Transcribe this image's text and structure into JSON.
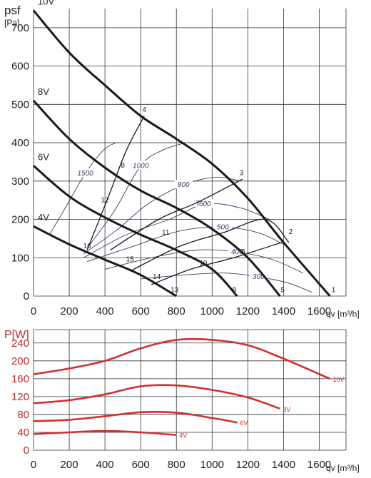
{
  "chart_data": [
    {
      "type": "line",
      "ylabel_top": "psf",
      "ylabel_unit": "[Pa]",
      "xlabel": "qv [m³/h]",
      "xlim": [
        0,
        1750
      ],
      "ylim": [
        0,
        750
      ],
      "x_ticks": [
        0,
        200,
        400,
        600,
        800,
        1000,
        1200,
        1400,
        1600
      ],
      "y_ticks": [
        0,
        100,
        200,
        300,
        400,
        500,
        600,
        700
      ],
      "grid": true,
      "series": [
        {
          "name": "10V",
          "points": [
            [
              0,
              745
            ],
            [
              200,
              635
            ],
            [
              400,
              550
            ],
            [
              600,
              470
            ],
            [
              800,
              410
            ],
            [
              1000,
              345
            ],
            [
              1200,
              255
            ],
            [
              1400,
              140
            ],
            [
              1660,
              0
            ]
          ]
        },
        {
          "name": "8V",
          "points": [
            [
              0,
              510
            ],
            [
              200,
              410
            ],
            [
              400,
              335
            ],
            [
              600,
              275
            ],
            [
              800,
              230
            ],
            [
              1000,
              175
            ],
            [
              1200,
              100
            ],
            [
              1380,
              0
            ]
          ]
        },
        {
          "name": "6V",
          "points": [
            [
              0,
              340
            ],
            [
              200,
              260
            ],
            [
              400,
              205
            ],
            [
              600,
              160
            ],
            [
              800,
              120
            ],
            [
              1000,
              70
            ],
            [
              1140,
              0
            ]
          ]
        },
        {
          "name": "4V",
          "points": [
            [
              0,
              182
            ],
            [
              200,
              135
            ],
            [
              400,
              95
            ],
            [
              600,
              55
            ],
            [
              800,
              0
            ]
          ]
        }
      ],
      "isolines": [
        {
          "label": "1500",
          "points": [
            [
              90,
              160
            ],
            [
              190,
              240
            ],
            [
              290,
              320
            ],
            [
              390,
              380
            ],
            [
              460,
              400
            ]
          ]
        },
        {
          "label": "1000",
          "points": [
            [
              300,
              125
            ],
            [
              450,
              220
            ],
            [
              600,
              340
            ],
            [
              720,
              380
            ],
            [
              850,
              400
            ]
          ]
        },
        {
          "label": "800",
          "points": [
            [
              280,
              110
            ],
            [
              460,
              170
            ],
            [
              640,
              240
            ],
            [
              840,
              290
            ],
            [
              1020,
              310
            ],
            [
              1160,
              300
            ]
          ]
        },
        {
          "label": "600",
          "points": [
            [
              280,
              100
            ],
            [
              520,
              160
            ],
            [
              760,
              200
            ],
            [
              960,
              240
            ],
            [
              1160,
              230
            ],
            [
              1320,
              200
            ]
          ]
        },
        {
          "label": "500",
          "points": [
            [
              300,
              90
            ],
            [
              560,
              130
            ],
            [
              820,
              170
            ],
            [
              1060,
              180
            ],
            [
              1260,
              165
            ],
            [
              1420,
              130
            ]
          ]
        },
        {
          "label": "400",
          "points": [
            [
              400,
              70
            ],
            [
              660,
              100
            ],
            [
              920,
              120
            ],
            [
              1140,
              115
            ],
            [
              1340,
              95
            ],
            [
              1510,
              60
            ]
          ]
        },
        {
          "label": "300",
          "points": [
            [
              600,
              45
            ],
            [
              840,
              55
            ],
            [
              1080,
              60
            ],
            [
              1260,
              50
            ],
            [
              1420,
              35
            ],
            [
              1560,
              10
            ]
          ]
        }
      ],
      "resistance_lines": [
        {
          "points": [
            [
              300,
              120
            ],
            [
              420,
              260
            ],
            [
              520,
              380
            ],
            [
              620,
              470
            ]
          ]
        },
        {
          "points": [
            [
              430,
              120
            ],
            [
              700,
              200
            ],
            [
              920,
              245
            ],
            [
              1170,
              305
            ]
          ]
        },
        {
          "points": [
            [
              540,
              65
            ],
            [
              820,
              130
            ],
            [
              1060,
              165
            ],
            [
              1300,
              200
            ],
            [
              1430,
              140
            ]
          ]
        },
        {
          "points": [
            [
              660,
              30
            ],
            [
              880,
              70
            ],
            [
              1120,
              100
            ],
            [
              1390,
              140
            ]
          ]
        }
      ],
      "point_labels": [
        {
          "label": "1",
          "x": 1680,
          "y": 10
        },
        {
          "label": "2",
          "x": 1440,
          "y": 162
        },
        {
          "label": "3",
          "x": 1165,
          "y": 315
        },
        {
          "label": "4",
          "x": 620,
          "y": 480
        },
        {
          "label": "5",
          "x": 1395,
          "y": 10
        },
        {
          "label": "6",
          "x": 1175,
          "y": 110
        },
        {
          "label": "7",
          "x": 920,
          "y": 235
        },
        {
          "label": "8",
          "x": 500,
          "y": 335
        },
        {
          "label": "9",
          "x": 1125,
          "y": 10
        },
        {
          "label": "10",
          "x": 950,
          "y": 80
        },
        {
          "label": "11",
          "x": 740,
          "y": 160
        },
        {
          "label": "12",
          "x": 400,
          "y": 245
        },
        {
          "label": "13",
          "x": 790,
          "y": 10
        },
        {
          "label": "14",
          "x": 690,
          "y": 45
        },
        {
          "label": "15",
          "x": 540,
          "y": 90
        },
        {
          "label": "16",
          "x": 300,
          "y": 125
        }
      ]
    },
    {
      "type": "line",
      "ylabel": "P[W]",
      "xlabel": "qv [m³/h]",
      "xlim": [
        0,
        1750
      ],
      "ylim": [
        0,
        270
      ],
      "x_ticks": [
        0,
        200,
        400,
        600,
        800,
        1000,
        1200,
        1400,
        1600
      ],
      "y_ticks": [
        0,
        40,
        80,
        120,
        160,
        200,
        240
      ],
      "grid": true,
      "series": [
        {
          "name": "10V",
          "points": [
            [
              0,
              170
            ],
            [
              200,
              183
            ],
            [
              400,
              200
            ],
            [
              600,
              228
            ],
            [
              800,
              247
            ],
            [
              1000,
              247
            ],
            [
              1200,
              235
            ],
            [
              1400,
              205
            ],
            [
              1660,
              160
            ]
          ]
        },
        {
          "name": "8V",
          "points": [
            [
              0,
              105
            ],
            [
              200,
              112
            ],
            [
              400,
              125
            ],
            [
              600,
              143
            ],
            [
              800,
              145
            ],
            [
              1000,
              135
            ],
            [
              1200,
              118
            ],
            [
              1380,
              93
            ]
          ]
        },
        {
          "name": "6V",
          "points": [
            [
              0,
              65
            ],
            [
              200,
              68
            ],
            [
              400,
              76
            ],
            [
              600,
              85
            ],
            [
              800,
              84
            ],
            [
              1000,
              72
            ],
            [
              1140,
              62
            ]
          ]
        },
        {
          "name": "4V",
          "points": [
            [
              0,
              36
            ],
            [
              200,
              40
            ],
            [
              400,
              43
            ],
            [
              600,
              40
            ],
            [
              800,
              34
            ]
          ]
        }
      ]
    }
  ],
  "colors": {
    "fan_curve": "#1a1a1a",
    "isoline": "#3a3f6b",
    "power_curve": "#d32f2f",
    "power_axis": "#c62828"
  }
}
